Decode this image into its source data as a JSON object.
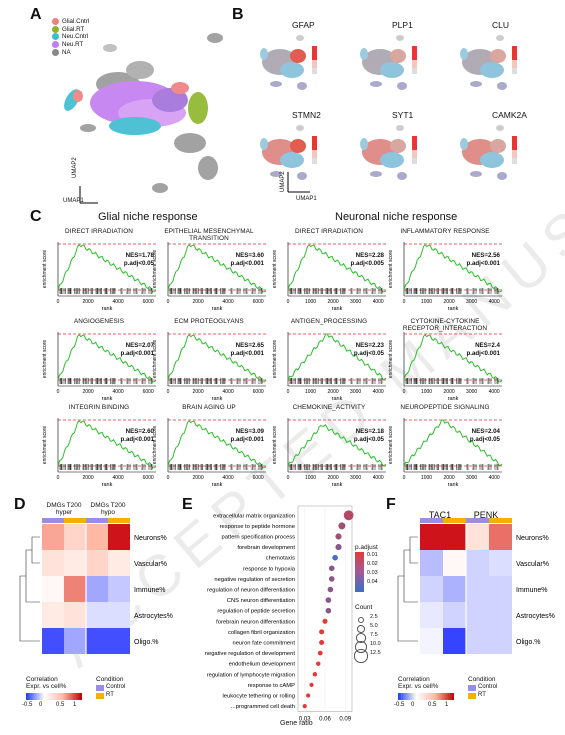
{
  "watermark": "ACCEPTED MANUSCRIPT",
  "panels": {
    "A": {
      "label": "A",
      "legend": [
        {
          "name": "Glial.Cntrl",
          "color": "#f07f7f"
        },
        {
          "name": "Glial.RT",
          "color": "#8db52a"
        },
        {
          "name": "Neu.Cntrl",
          "color": "#3bbcd0"
        },
        {
          "name": "Neu.RT",
          "color": "#c37cf0"
        },
        {
          "name": "NA",
          "color": "#888888"
        }
      ],
      "xaxis": "UMAP1",
      "yaxis": "UMAP2"
    },
    "B": {
      "label": "B",
      "genes": [
        "GFAP",
        "PLP1",
        "CLU",
        "STMN2",
        "SYT1",
        "CAMK2A"
      ],
      "xaxis": "UMAP1",
      "yaxis": "UMAP2"
    },
    "C": {
      "label": "C",
      "glial_title": "Glial niche response",
      "neuronal_title": "Neuronal niche response",
      "ylabel": "enrichment score",
      "xlabel": "rank",
      "plots": [
        {
          "title": "DIRECT IRRADIATION",
          "nes": "NES=1.78",
          "padj": "p.adj<0.05",
          "shape": "early"
        },
        {
          "title": "EPITHELIAL MESENCHYMAL TRANSITION",
          "nes": "NES=3.60",
          "padj": "p.adj<0.001",
          "shape": "early"
        },
        {
          "title": "DIRECT IRRADIATION",
          "nes": "NES=2.28",
          "padj": "p.adj<0.005",
          "shape": "early"
        },
        {
          "title": "INFLAMMATORY RESPONSE",
          "nes": "NES=2.56",
          "padj": "p.adj<0.001",
          "shape": "early"
        },
        {
          "title": "ANGIOGENESIS",
          "nes": "NES=2.07",
          "padj": "p.adj<0.001",
          "shape": "early"
        },
        {
          "title": "ECM PROTEOGLYANS",
          "nes": "NES=2.65",
          "padj": "p.adj<0.001",
          "shape": "early"
        },
        {
          "title": "ANTIGEN_PROCESSING",
          "nes": "NES=2.23",
          "padj": "p.adj<0.05",
          "shape": "mid"
        },
        {
          "title": "CYTOKINE-CYTOKINE RECEPTOR_INTERACTION",
          "nes": "NES=2.4",
          "padj": "p.adj<0.001",
          "shape": "early"
        },
        {
          "title": "INTEGRIN BINDING",
          "nes": "NES=2.60",
          "padj": "p.adj<0.001",
          "shape": "early"
        },
        {
          "title": "BRAIN AGING UP",
          "nes": "NES=3.09",
          "padj": "p.adj<0.001",
          "shape": "early"
        },
        {
          "title": "CHEMOKINE_ACTIVITY",
          "nes": "NES=2.18",
          "padj": "p.adj<0.05",
          "shape": "flat"
        },
        {
          "title": "NEUROPEPTIDE SIGNALING",
          "nes": "NES=2.04",
          "padj": "p.adj<0.05",
          "shape": "mid"
        }
      ],
      "ticks_small": [
        "0",
        "2000",
        "4000",
        "6000"
      ],
      "ticks_large": [
        "0",
        "1000",
        "2000",
        "3000",
        "4000"
      ]
    },
    "D": {
      "label": "D",
      "col_headers": [
        "DMGs T200 hyper",
        "DMGs T200 hypo"
      ],
      "rows": [
        "Neurons%",
        "Vascular%",
        "Immune%",
        "Astrocytes%",
        "Oligo.%"
      ],
      "values": [
        [
          0.3,
          0.9
        ],
        [
          0.2,
          0.3
        ],
        [
          0.1,
          0.7
        ],
        [
          0.2,
          -0.2
        ],
        [
          -0.7,
          -0.8
        ]
      ],
      "cells_split": [
        [
          [
            0.55,
            0.3
          ],
          [
            0.5,
            0.95
          ]
        ],
        [
          [
            0.2,
            0.15
          ],
          [
            0.3,
            0.15
          ]
        ],
        [
          [
            0.05,
            0.65
          ],
          [
            -0.4,
            -0.25
          ]
        ],
        [
          [
            0.15,
            0.2
          ],
          [
            -0.15,
            -0.15
          ]
        ],
        [
          [
            -0.8,
            -0.4
          ],
          [
            -0.8,
            -0.8
          ]
        ]
      ],
      "legend_title": "Correlation\nExpr. vs cell%",
      "legend_ticks": [
        "-0.5",
        "0",
        "0.5",
        "1"
      ],
      "condition_title": "Condition",
      "conditions": [
        {
          "name": "Control",
          "color": "#9b8ee0"
        },
        {
          "name": "RT",
          "color": "#f2b000"
        }
      ]
    },
    "E": {
      "label": "E",
      "terms": [
        "extracellular matrix organization",
        "response to peptide hormone",
        "pattern specification process",
        "forebrain development",
        "chemotaxis",
        "response to hypoxia",
        "negative regulation of secretion",
        "regulation of neuron differentiation",
        "CNS neuron differentiation",
        "regulation of peptide secretion",
        "forebrain neuron differentiation",
        "collagen fibril organization",
        "neuron fate commitment",
        "negative regulation of development",
        "endothelium development",
        "regulation of lymphocyte migration",
        "response to cAMP",
        "leukocyte tethering or rolling",
        "...programmed cell death"
      ],
      "gene_ratio": [
        0.095,
        0.085,
        0.08,
        0.08,
        0.075,
        0.07,
        0.07,
        0.068,
        0.065,
        0.065,
        0.06,
        0.055,
        0.055,
        0.053,
        0.05,
        0.045,
        0.04,
        0.035,
        0.03
      ],
      "padj": [
        0.02,
        0.025,
        0.025,
        0.03,
        0.045,
        0.03,
        0.03,
        0.03,
        0.03,
        0.03,
        0.01,
        0.01,
        0.01,
        0.01,
        0.01,
        0.01,
        0.01,
        0.01,
        0.01
      ],
      "count": [
        12.5,
        7.5,
        6,
        6,
        5,
        5,
        5,
        5,
        5,
        5,
        4,
        4,
        4,
        3.5,
        3,
        3,
        2.5,
        2.5,
        2.5
      ],
      "xlabel": "Gene ratio",
      "xticks": [
        "0.03",
        "0.06",
        "0.09"
      ],
      "padj_title": "p.adjust",
      "padj_ticks": [
        "0.01",
        "0.02",
        "0.03",
        "0.04"
      ],
      "count_title": "Count",
      "count_ticks": [
        "2.5",
        "5.0",
        "7.5",
        "10.0",
        "12.5"
      ]
    },
    "F": {
      "label": "F",
      "col_headers": [
        "TAC1",
        "PENK"
      ],
      "rows": [
        "Neurons%",
        "Vascular%",
        "Immune%",
        "Astrocytes%",
        "Oligo.%"
      ],
      "cells_split": [
        [
          [
            0.95,
            0.95
          ],
          [
            0.2,
            0.7
          ]
        ],
        [
          [
            -0.3,
            0.05
          ],
          [
            -0.2,
            -0.15
          ]
        ],
        [
          [
            -0.2,
            -0.35
          ],
          [
            -0.2,
            -0.2
          ]
        ],
        [
          [
            -0.1,
            -0.2
          ],
          [
            -0.2,
            -0.2
          ]
        ],
        [
          [
            -0.05,
            -0.85
          ],
          [
            -0.2,
            -0.2
          ]
        ]
      ],
      "legend_title": "Correlation\nExpr. vs cell%",
      "legend_ticks": [
        "-0.5",
        "0",
        "0.5",
        "1"
      ],
      "condition_title": "Condition",
      "conditions": [
        {
          "name": "Control",
          "color": "#9b8ee0"
        },
        {
          "name": "RT",
          "color": "#f2b000"
        }
      ]
    }
  }
}
